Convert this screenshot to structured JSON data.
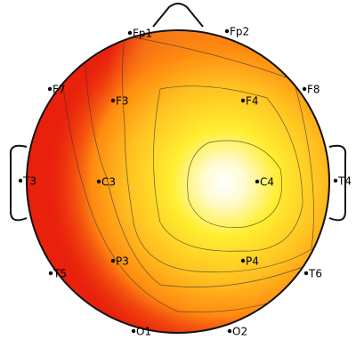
{
  "electrodes": [
    {
      "label": "Fp1"
    },
    {
      "label": "Fp2"
    },
    {
      "label": "F7"
    },
    {
      "label": "F3"
    },
    {
      "label": "F4"
    },
    {
      "label": "F8"
    },
    {
      "label": "T3"
    },
    {
      "label": "C3"
    },
    {
      "label": "C4"
    },
    {
      "label": "T4"
    },
    {
      "label": "T5"
    },
    {
      "label": "P3"
    },
    {
      "label": "P4"
    },
    {
      "label": "T6"
    },
    {
      "label": "O1"
    },
    {
      "label": "O2"
    }
  ]
}
